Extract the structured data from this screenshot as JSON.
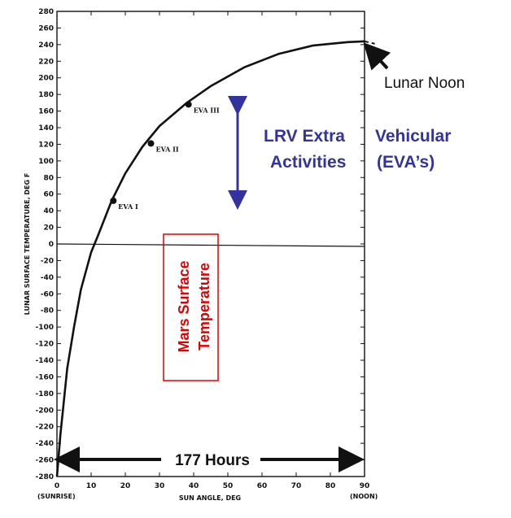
{
  "chart_data": {
    "type": "line",
    "title": "",
    "ylabel": "LUNAR SURFACE TEMPERATURE, DEG F",
    "xlabel": "SUN ANGLE, DEG",
    "xlim": [
      0,
      90
    ],
    "ylim": [
      -280,
      280
    ],
    "xticks": [
      0,
      10,
      20,
      30,
      40,
      50,
      60,
      70,
      80,
      90
    ],
    "yticks": [
      280,
      260,
      240,
      220,
      200,
      180,
      160,
      140,
      120,
      100,
      80,
      60,
      40,
      20,
      0,
      -20,
      -40,
      -60,
      -80,
      -100,
      -120,
      -140,
      -160,
      -180,
      -200,
      -220,
      -240,
      -260,
      -280
    ],
    "x_sub_labels": {
      "start": "(SUNRISE)",
      "end": "(NOON)"
    },
    "series": [
      {
        "x": [
          0,
          1,
          2,
          3,
          5,
          7,
          10,
          12,
          16,
          20,
          25,
          30,
          38,
          45,
          55,
          65,
          75,
          85,
          90
        ],
        "values": [
          -280,
          -230,
          -190,
          -150,
          -100,
          -55,
          -10,
          10,
          52,
          85,
          117,
          142,
          170,
          190,
          213,
          229,
          239,
          243,
          244
        ]
      }
    ],
    "extension_dashed": {
      "x": [
        90,
        93
      ],
      "values": [
        244,
        241
      ]
    },
    "points": [
      {
        "label": "EVA I",
        "x": 16.5,
        "y": 52
      },
      {
        "label": "EVA II",
        "x": 27.5,
        "y": 121
      },
      {
        "label": "EVA III",
        "x": 38.5,
        "y": 168
      }
    ],
    "reference_line_y": 0,
    "grid": false
  },
  "annotations": {
    "lunar_noon": "Lunar Noon",
    "eva_line1a": "LRV Extra",
    "eva_line1b": "Vehicular",
    "eva_line2a": "Activities",
    "eva_line2b": "(EVA’s)",
    "mars_line1": "Mars Surface",
    "mars_line2": "Temperature",
    "duration": "177 Hours"
  },
  "colors": {
    "eva_text": "#3333a0",
    "mars_text": "#e00000",
    "mars_box": "#e00000",
    "arrow": "#3333a0",
    "ink": "#111111"
  }
}
